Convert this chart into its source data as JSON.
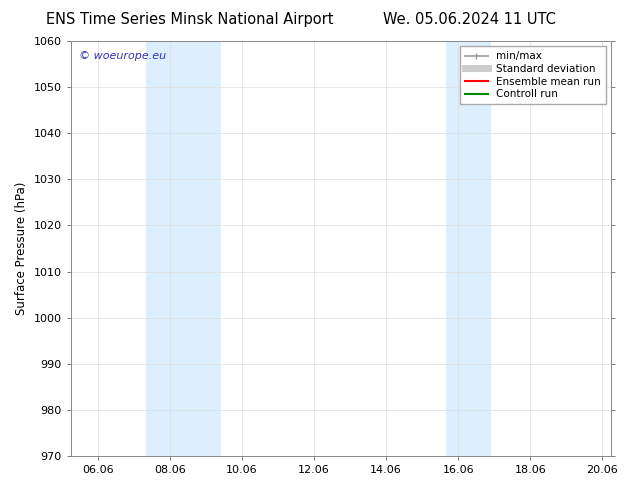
{
  "title_left": "ENS Time Series Minsk National Airport",
  "title_right": "We. 05.06.2024 11 UTC",
  "ylabel": "Surface Pressure (hPa)",
  "ylim": [
    970,
    1060
  ],
  "yticks": [
    970,
    980,
    990,
    1000,
    1010,
    1020,
    1030,
    1040,
    1050,
    1060
  ],
  "xlim": [
    0.0,
    15.0
  ],
  "xtick_positions": [
    0.75,
    2.75,
    4.75,
    6.75,
    8.75,
    10.75,
    12.75,
    14.75
  ],
  "xtick_labels": [
    "06.06",
    "08.06",
    "10.06",
    "12.06",
    "14.06",
    "16.06",
    "18.06",
    "20.06"
  ],
  "shaded_bands": [
    {
      "start": 2.08,
      "end": 4.17,
      "color": "#ddeeff"
    },
    {
      "start": 10.42,
      "end": 11.67,
      "color": "#ddeeff"
    }
  ],
  "watermark_text": "© woeurope.eu",
  "watermark_color": "#3333bb",
  "legend_items": [
    {
      "label": "min/max",
      "color": "#999999",
      "lw": 1.2
    },
    {
      "label": "Standard deviation",
      "color": "#cccccc",
      "lw": 5
    },
    {
      "label": "Ensemble mean run",
      "color": "#ff0000",
      "lw": 1.5
    },
    {
      "label": "Controll run",
      "color": "#008800",
      "lw": 1.5
    }
  ],
  "bg_color": "#ffffff",
  "plot_bg_color": "#ffffff",
  "title_fontsize": 10.5,
  "tick_fontsize": 8,
  "label_fontsize": 8.5,
  "legend_fontsize": 7.5
}
